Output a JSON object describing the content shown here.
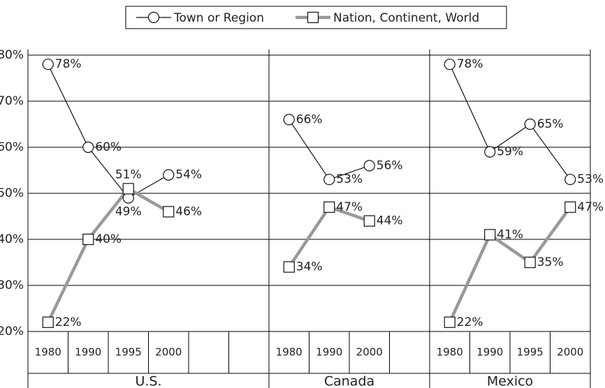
{
  "chart_data": {
    "type": "line",
    "categories": [
      "1980",
      "1990",
      "1995",
      "2000",
      null,
      null,
      "1980",
      "1990",
      "2000",
      null,
      "1980",
      "1990",
      "1995",
      "2000"
    ],
    "groups": [
      {
        "name": "U.S.",
        "span": 6
      },
      {
        "name": "Canada",
        "span": 4
      },
      {
        "name": "Mexico",
        "span": 4
      }
    ],
    "series": [
      {
        "name": "Town or Region",
        "color": "#111111",
        "marker": "circle",
        "values": [
          78,
          60,
          49,
          54,
          null,
          null,
          66,
          53,
          56,
          null,
          78,
          59,
          65,
          53
        ],
        "value_labels": [
          "78%",
          "60%",
          "49%",
          "54%",
          null,
          null,
          "66%",
          "53%",
          "56%",
          null,
          "78%",
          "59%",
          "65%",
          "53%"
        ]
      },
      {
        "name": "Nation, Continent, World",
        "color": "#999999",
        "marker": "square",
        "values": [
          22,
          40,
          51,
          46,
          null,
          null,
          34,
          47,
          44,
          null,
          22,
          41,
          35,
          47
        ],
        "value_labels": [
          "22%",
          "40%",
          "51%",
          "46%",
          null,
          null,
          "34%",
          "47%",
          "44%",
          null,
          "22%",
          "41%",
          "35%",
          "47%"
        ]
      }
    ],
    "ylim": [
      20,
      80
    ],
    "yticks": [
      {
        "value": 20,
        "label": "20%"
      },
      {
        "value": 30,
        "label": "30%"
      },
      {
        "value": 40,
        "label": "40%"
      },
      {
        "value": 50,
        "label": "50%"
      },
      {
        "value": 60,
        "label": "60%"
      },
      {
        "value": 70,
        "label": "70%"
      },
      {
        "value": 80,
        "label": "80%"
      }
    ],
    "grid": true,
    "legend": "top"
  }
}
